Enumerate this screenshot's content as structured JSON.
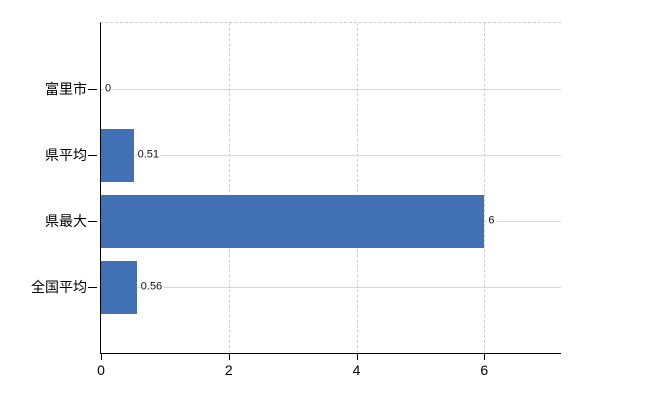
{
  "chart_data": {
    "type": "bar",
    "orientation": "horizontal",
    "title": "",
    "xlabel": "",
    "ylabel": "",
    "categories": [
      "富里市",
      "県平均",
      "県最大",
      "全国平均"
    ],
    "values": [
      0,
      0.51,
      6,
      0.56
    ],
    "value_labels": [
      "0",
      "0.51",
      "6",
      "0.56"
    ],
    "xlim": [
      0,
      7.2
    ],
    "xticks": [
      0,
      2,
      4,
      6
    ],
    "xtick_labels": [
      "0",
      "2",
      "4",
      "6"
    ],
    "grid": true,
    "legend": false,
    "colors": {
      "bar": "#4170b5",
      "h_gridline": "#d6d6d6",
      "v_gridline": "#cdcdcd",
      "axis": "#000000",
      "text": "#000000"
    },
    "background": "#ffffff"
  }
}
